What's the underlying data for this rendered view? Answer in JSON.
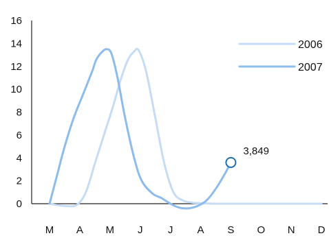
{
  "chart_data": {
    "type": "line",
    "categories": [
      "M",
      "A",
      "M",
      "J",
      "J",
      "A",
      "S",
      "O",
      "N",
      "D"
    ],
    "ylim": [
      0,
      16
    ],
    "yticks": [
      0,
      2,
      4,
      6,
      8,
      10,
      12,
      14,
      16
    ],
    "grid": false,
    "legend_position": "top-right",
    "series": [
      {
        "name": "2006",
        "color": "#c6dcf4",
        "points": [
          [
            0.0,
            0.0
          ],
          [
            0.5,
            -0.2
          ],
          [
            0.9,
            -0.1
          ],
          [
            1.2,
            1.0
          ],
          [
            1.5,
            3.5
          ],
          [
            1.8,
            6.0
          ],
          [
            2.1,
            8.5
          ],
          [
            2.35,
            10.8
          ],
          [
            2.6,
            12.6
          ],
          [
            2.8,
            13.3
          ],
          [
            2.95,
            13.4
          ],
          [
            3.2,
            11.5
          ],
          [
            3.5,
            7.5
          ],
          [
            3.8,
            3.5
          ],
          [
            4.1,
            1.0
          ],
          [
            4.4,
            0.3
          ],
          [
            4.7,
            0.1
          ],
          [
            5.0,
            0.05
          ],
          [
            5.5,
            0.0
          ],
          [
            6.0,
            0.0
          ],
          [
            7.0,
            0.0
          ],
          [
            8.0,
            0.0
          ],
          [
            9.0,
            0.0
          ]
        ]
      },
      {
        "name": "2007",
        "color": "#8dbcec",
        "points": [
          [
            0.0,
            0.0
          ],
          [
            0.25,
            2.5
          ],
          [
            0.5,
            5.0
          ],
          [
            0.8,
            7.5
          ],
          [
            1.1,
            9.5
          ],
          [
            1.4,
            11.5
          ],
          [
            1.55,
            12.6
          ],
          [
            1.75,
            13.3
          ],
          [
            1.9,
            13.5
          ],
          [
            2.05,
            13.1
          ],
          [
            2.25,
            11.0
          ],
          [
            2.5,
            7.5
          ],
          [
            2.8,
            4.0
          ],
          [
            3.05,
            2.0
          ],
          [
            3.4,
            0.9
          ],
          [
            3.7,
            0.5
          ],
          [
            4.0,
            0.0
          ],
          [
            4.3,
            -0.35
          ],
          [
            4.6,
            -0.4
          ],
          [
            4.9,
            -0.2
          ],
          [
            5.2,
            0.3
          ],
          [
            5.5,
            1.3
          ],
          [
            5.8,
            2.6
          ],
          [
            6.0,
            3.6
          ]
        ]
      }
    ],
    "annotation": {
      "label": "3,849",
      "x": 6.0,
      "y": 3.6
    }
  }
}
